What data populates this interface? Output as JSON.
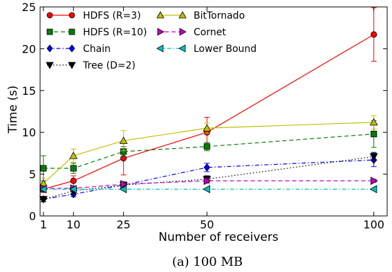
{
  "chart_data": {
    "type": "line",
    "xlabel": "Number of receivers",
    "ylabel": "Time (s)",
    "caption": "(a) 100 MB",
    "xlim": [
      0,
      104
    ],
    "ylim": [
      0,
      25
    ],
    "xticks": [
      1,
      10,
      25,
      50,
      100
    ],
    "yticks": [
      0,
      5,
      10,
      15,
      20,
      25
    ],
    "legend_position": "top-left",
    "x": [
      1,
      10,
      25,
      50,
      100
    ],
    "series": [
      {
        "name": "HDFS (R=3)",
        "color": "#ff0000",
        "dash": "solid",
        "marker": "circle",
        "values": [
          3.2,
          4.2,
          6.9,
          10.0,
          21.7
        ],
        "errors": [
          0.4,
          0.6,
          2.0,
          1.8,
          3.2
        ]
      },
      {
        "name": "HDFS (R=10)",
        "color": "#008000",
        "dash": "dashed",
        "marker": "square",
        "values": [
          5.7,
          5.7,
          7.7,
          8.3,
          9.8
        ],
        "errors": [
          1.5,
          0.6,
          0.6,
          0.5,
          1.6
        ]
      },
      {
        "name": "Chain",
        "color": "#0000ff",
        "dash": "dashdot",
        "marker": "diamond",
        "values": [
          2.0,
          2.6,
          3.7,
          5.8,
          6.7
        ],
        "errors": [
          0.3,
          0.3,
          0.4,
          0.5,
          0.8
        ]
      },
      {
        "name": "Tree (D=2)",
        "color": "#000000",
        "dash": "dotted",
        "marker": "triangle-down",
        "values": [
          2.0,
          3.0,
          3.7,
          4.4,
          7.1
        ],
        "errors": [
          0.3,
          0.4,
          0.4,
          0.4,
          0.5
        ]
      },
      {
        "name": "BitTornado",
        "color": "#bfbf00",
        "dash": "solid",
        "marker": "triangle-up",
        "values": [
          3.9,
          7.2,
          9.0,
          10.5,
          11.2
        ],
        "errors": [
          0.6,
          0.8,
          1.2,
          0.6,
          0.8
        ]
      },
      {
        "name": "Cornet",
        "color": "#bf00bf",
        "dash": "dashed",
        "marker": "triangle-right",
        "values": [
          3.3,
          3.3,
          3.8,
          4.2,
          4.2
        ],
        "errors": [
          0.3,
          0.3,
          0.3,
          0.3,
          0.2
        ]
      },
      {
        "name": "Lower Bound",
        "color": "#00bfbf",
        "dash": "dashdot",
        "marker": "triangle-left",
        "values": [
          3.2,
          3.2,
          3.2,
          3.2,
          3.2
        ],
        "errors": [
          0,
          0,
          0,
          0,
          0
        ]
      }
    ]
  }
}
